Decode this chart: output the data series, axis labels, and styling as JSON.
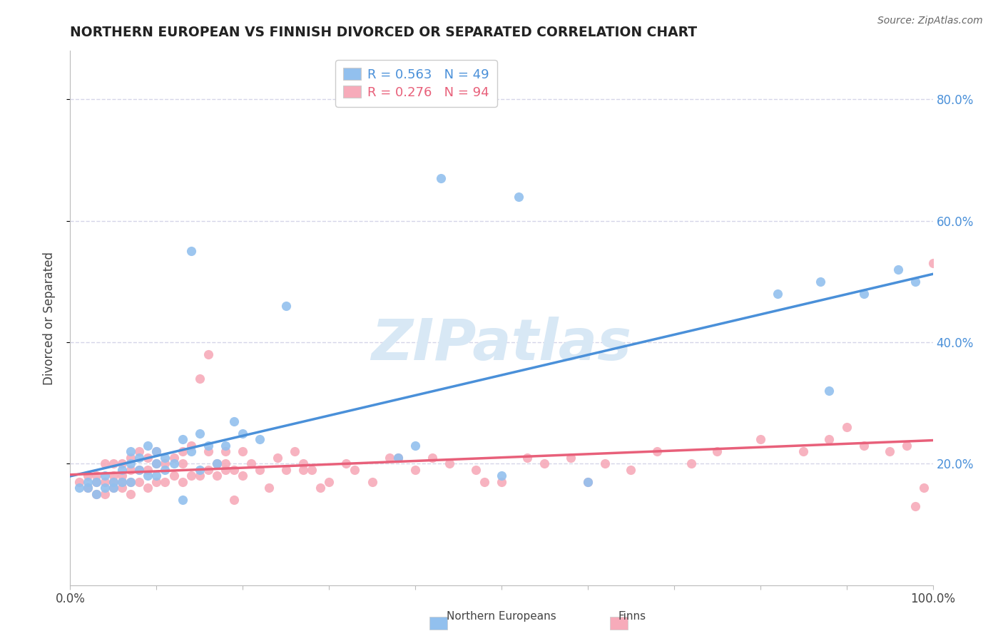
{
  "title": "NORTHERN EUROPEAN VS FINNISH DIVORCED OR SEPARATED CORRELATION CHART",
  "source": "Source: ZipAtlas.com",
  "ylabel": "Divorced or Separated",
  "xlim": [
    0.0,
    1.0
  ],
  "ylim": [
    0.0,
    0.88
  ],
  "blue_R": 0.563,
  "blue_N": 49,
  "pink_R": 0.276,
  "pink_N": 94,
  "blue_color": "#92C0EE",
  "pink_color": "#F7ABBA",
  "blue_line_color": "#4A90D9",
  "pink_line_color": "#E8607A",
  "legend_blue_text_color": "#4A90D9",
  "legend_pink_text_color": "#E8607A",
  "title_color": "#222222",
  "grid_color": "#D5D5E8",
  "background_color": "#FFFFFF",
  "watermark": "ZIPatlas",
  "watermark_color": "#D8E8F5",
  "blue_x": [
    0.01,
    0.02,
    0.02,
    0.03,
    0.03,
    0.04,
    0.04,
    0.05,
    0.05,
    0.06,
    0.06,
    0.07,
    0.07,
    0.07,
    0.08,
    0.08,
    0.09,
    0.09,
    0.1,
    0.1,
    0.1,
    0.11,
    0.11,
    0.12,
    0.13,
    0.13,
    0.14,
    0.14,
    0.15,
    0.15,
    0.16,
    0.17,
    0.18,
    0.19,
    0.2,
    0.22,
    0.25,
    0.38,
    0.4,
    0.43,
    0.5,
    0.52,
    0.6,
    0.82,
    0.87,
    0.88,
    0.92,
    0.96,
    0.98
  ],
  "blue_y": [
    0.16,
    0.17,
    0.16,
    0.17,
    0.15,
    0.16,
    0.18,
    0.17,
    0.16,
    0.17,
    0.19,
    0.17,
    0.2,
    0.22,
    0.19,
    0.21,
    0.18,
    0.23,
    0.2,
    0.22,
    0.18,
    0.21,
    0.19,
    0.2,
    0.24,
    0.14,
    0.22,
    0.55,
    0.25,
    0.19,
    0.23,
    0.2,
    0.23,
    0.27,
    0.25,
    0.24,
    0.46,
    0.21,
    0.23,
    0.67,
    0.18,
    0.64,
    0.17,
    0.48,
    0.5,
    0.32,
    0.48,
    0.52,
    0.5
  ],
  "pink_x": [
    0.01,
    0.02,
    0.02,
    0.03,
    0.03,
    0.03,
    0.04,
    0.04,
    0.04,
    0.05,
    0.05,
    0.05,
    0.05,
    0.06,
    0.06,
    0.06,
    0.06,
    0.07,
    0.07,
    0.07,
    0.07,
    0.08,
    0.08,
    0.08,
    0.09,
    0.09,
    0.09,
    0.1,
    0.1,
    0.1,
    0.11,
    0.11,
    0.12,
    0.12,
    0.13,
    0.13,
    0.13,
    0.14,
    0.14,
    0.15,
    0.15,
    0.16,
    0.16,
    0.17,
    0.18,
    0.18,
    0.19,
    0.2,
    0.2,
    0.21,
    0.22,
    0.23,
    0.24,
    0.25,
    0.26,
    0.27,
    0.28,
    0.3,
    0.32,
    0.33,
    0.35,
    0.37,
    0.4,
    0.42,
    0.44,
    0.47,
    0.5,
    0.53,
    0.55,
    0.58,
    0.6,
    0.62,
    0.65,
    0.68,
    0.72,
    0.75,
    0.8,
    0.85,
    0.88,
    0.9,
    0.92,
    0.95,
    0.97,
    0.98,
    0.99,
    1.0,
    0.16,
    0.17,
    0.18,
    0.19,
    0.27,
    0.29,
    0.38,
    0.48
  ],
  "pink_y": [
    0.17,
    0.16,
    0.18,
    0.15,
    0.17,
    0.18,
    0.15,
    0.17,
    0.2,
    0.16,
    0.18,
    0.17,
    0.2,
    0.16,
    0.18,
    0.2,
    0.17,
    0.15,
    0.17,
    0.19,
    0.21,
    0.17,
    0.19,
    0.22,
    0.16,
    0.19,
    0.21,
    0.17,
    0.2,
    0.22,
    0.17,
    0.2,
    0.18,
    0.21,
    0.17,
    0.2,
    0.22,
    0.18,
    0.23,
    0.18,
    0.34,
    0.19,
    0.38,
    0.18,
    0.2,
    0.22,
    0.19,
    0.18,
    0.22,
    0.2,
    0.19,
    0.16,
    0.21,
    0.19,
    0.22,
    0.2,
    0.19,
    0.17,
    0.2,
    0.19,
    0.17,
    0.21,
    0.19,
    0.21,
    0.2,
    0.19,
    0.17,
    0.21,
    0.2,
    0.21,
    0.17,
    0.2,
    0.19,
    0.22,
    0.2,
    0.22,
    0.24,
    0.22,
    0.24,
    0.26,
    0.23,
    0.22,
    0.23,
    0.13,
    0.16,
    0.53,
    0.22,
    0.2,
    0.19,
    0.14,
    0.19,
    0.16,
    0.21,
    0.17
  ]
}
